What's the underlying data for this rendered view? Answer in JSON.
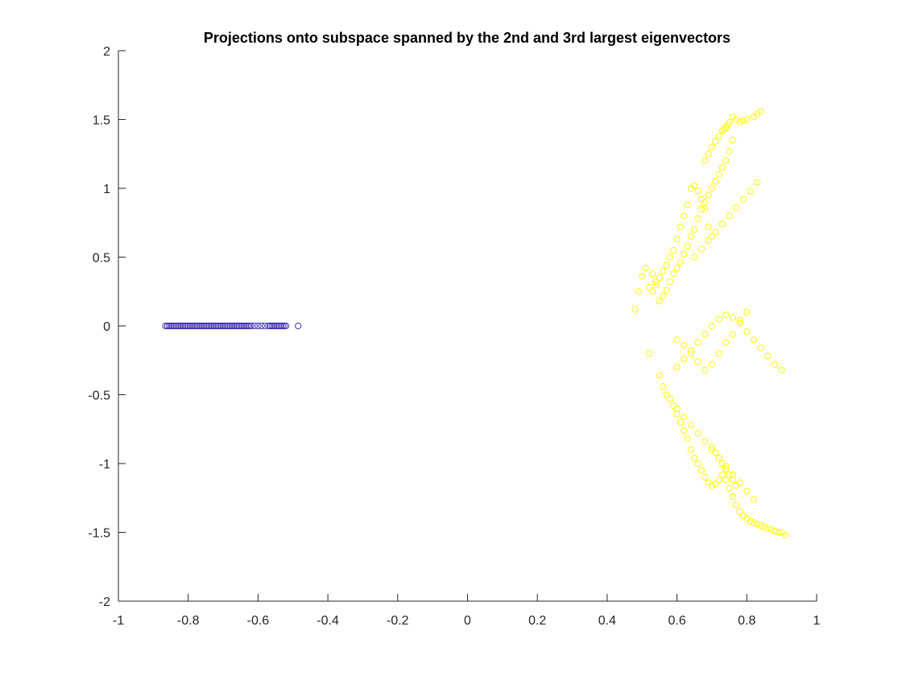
{
  "window": {
    "title": ""
  },
  "chart_data": {
    "type": "scatter",
    "title": "Projections onto subspace spanned by the 2nd and 3rd largest eigenvectors",
    "xlabel": "",
    "ylabel": "",
    "xlim": [
      -1,
      1
    ],
    "ylim": [
      -2,
      2
    ],
    "xticks": [
      -1,
      -0.8,
      -0.6,
      -0.4,
      -0.2,
      0,
      0.2,
      0.4,
      0.6,
      0.8,
      1
    ],
    "yticks": [
      -2,
      -1.5,
      -1,
      -0.5,
      0,
      0.5,
      1,
      1.5,
      2
    ],
    "xtick_labels": [
      "-1",
      "-0.8",
      "-0.6",
      "-0.4",
      "-0.2",
      "0",
      "0.2",
      "0.4",
      "0.6",
      "0.8",
      "1"
    ],
    "ytick_labels": [
      "-2",
      "-1.5",
      "-1",
      "-0.5",
      "0",
      "0.5",
      "1",
      "1.5",
      "2"
    ],
    "grid": false,
    "legend": "none",
    "marker": "circle-open",
    "series": [
      {
        "color": "#3a2eb0",
        "x": [
          -0.865,
          -0.86,
          -0.855,
          -0.85,
          -0.845,
          -0.84,
          -0.835,
          -0.83,
          -0.825,
          -0.82,
          -0.815,
          -0.81,
          -0.805,
          -0.8,
          -0.795,
          -0.79,
          -0.785,
          -0.78,
          -0.775,
          -0.77,
          -0.765,
          -0.76,
          -0.755,
          -0.75,
          -0.745,
          -0.74,
          -0.735,
          -0.73,
          -0.725,
          -0.72,
          -0.715,
          -0.71,
          -0.705,
          -0.7,
          -0.695,
          -0.69,
          -0.685,
          -0.68,
          -0.675,
          -0.67,
          -0.665,
          -0.66,
          -0.655,
          -0.65,
          -0.645,
          -0.64,
          -0.635,
          -0.63,
          -0.625,
          -0.62,
          -0.61,
          -0.6,
          -0.59,
          -0.58,
          -0.57,
          -0.565,
          -0.56,
          -0.555,
          -0.55,
          -0.545,
          -0.54,
          -0.535,
          -0.53,
          -0.525,
          -0.52,
          -0.485
        ],
        "y": [
          0,
          0,
          0,
          0,
          0,
          0,
          0,
          0,
          0,
          0,
          0,
          0,
          0,
          0,
          0,
          0,
          0,
          0,
          0,
          0,
          0,
          0,
          0,
          0,
          0,
          0,
          0,
          0,
          0,
          0,
          0,
          0,
          0,
          0,
          0,
          0,
          0,
          0,
          0,
          0,
          0,
          0,
          0,
          0,
          0,
          0,
          0,
          0,
          0,
          0,
          0,
          0,
          0,
          0,
          0,
          0,
          0,
          0,
          0,
          0,
          0,
          0,
          0,
          0,
          0,
          0
        ]
      },
      {
        "color": "#ffff00",
        "x": [
          0.84,
          0.83,
          0.82,
          0.8,
          0.79,
          0.78,
          0.77,
          0.76,
          0.75,
          0.745,
          0.74,
          0.735,
          0.73,
          0.72,
          0.71,
          0.7,
          0.69,
          0.68,
          0.76,
          0.75,
          0.74,
          0.73,
          0.72,
          0.71,
          0.7,
          0.69,
          0.68,
          0.67,
          0.66,
          0.65,
          0.64,
          0.63,
          0.62,
          0.61,
          0.6,
          0.59,
          0.58,
          0.57,
          0.56,
          0.55,
          0.54,
          0.53,
          0.52,
          0.51,
          0.5,
          0.49,
          0.48,
          0.7,
          0.69,
          0.68,
          0.67,
          0.66,
          0.65,
          0.64,
          0.63,
          0.62,
          0.61,
          0.6,
          0.59,
          0.58,
          0.57,
          0.56,
          0.55,
          0.54,
          0.53,
          0.52,
          0.55,
          0.56,
          0.57,
          0.58,
          0.59,
          0.6,
          0.61,
          0.62,
          0.63,
          0.64,
          0.65,
          0.66,
          0.67,
          0.68,
          0.69,
          0.7,
          0.71,
          0.72,
          0.73,
          0.74,
          0.75,
          0.76,
          0.77,
          0.78,
          0.79,
          0.8,
          0.81,
          0.82,
          0.83,
          0.84,
          0.85,
          0.86,
          0.87,
          0.88,
          0.89,
          0.9,
          0.91,
          0.6,
          0.62,
          0.64,
          0.66,
          0.68,
          0.7,
          0.72,
          0.74,
          0.76,
          0.78,
          0.8,
          0.82,
          0.84,
          0.86,
          0.88,
          0.9,
          0.6,
          0.62,
          0.64,
          0.66,
          0.68,
          0.7,
          0.72,
          0.74,
          0.76,
          0.78,
          0.8,
          0.7,
          0.71,
          0.72,
          0.73,
          0.74,
          0.75,
          0.76,
          0.77,
          0.6,
          0.62,
          0.64,
          0.66,
          0.68,
          0.7,
          0.72,
          0.74,
          0.76,
          0.78,
          0.8,
          0.82,
          0.65,
          0.67,
          0.69,
          0.71,
          0.73,
          0.75,
          0.77,
          0.79,
          0.81,
          0.83
        ],
        "y": [
          1.56,
          1.54,
          1.52,
          1.5,
          1.49,
          1.48,
          1.5,
          1.52,
          1.48,
          1.46,
          1.44,
          1.43,
          1.42,
          1.38,
          1.34,
          1.3,
          1.25,
          1.2,
          1.35,
          1.27,
          1.2,
          1.15,
          1.1,
          1.05,
          1.0,
          0.95,
          0.9,
          0.85,
          0.78,
          0.7,
          0.65,
          0.58,
          0.52,
          0.46,
          0.42,
          0.38,
          0.32,
          0.26,
          0.22,
          0.18,
          0.32,
          0.38,
          0.28,
          0.42,
          0.36,
          0.25,
          0.12,
          0.65,
          0.72,
          0.85,
          0.92,
          0.98,
          1.02,
          1.0,
          0.88,
          0.8,
          0.72,
          0.63,
          0.55,
          0.5,
          0.44,
          0.4,
          0.35,
          0.3,
          0.25,
          -0.2,
          -0.36,
          -0.44,
          -0.5,
          -0.53,
          -0.58,
          -0.64,
          -0.7,
          -0.76,
          -0.82,
          -0.9,
          -0.96,
          -1.0,
          -1.05,
          -1.1,
          -1.14,
          -1.16,
          -1.15,
          -1.12,
          -1.08,
          -1.12,
          -1.18,
          -1.24,
          -1.3,
          -1.35,
          -1.38,
          -1.4,
          -1.42,
          -1.43,
          -1.44,
          -1.45,
          -1.46,
          -1.47,
          -1.48,
          -1.49,
          -1.5,
          -1.5,
          -1.52,
          -0.3,
          -0.24,
          -0.18,
          -0.12,
          -0.06,
          0.0,
          0.05,
          0.08,
          0.06,
          0.02,
          -0.04,
          -0.1,
          -0.16,
          -0.22,
          -0.28,
          -0.32,
          -0.1,
          -0.14,
          -0.2,
          -0.26,
          -0.32,
          -0.28,
          -0.2,
          -0.12,
          -0.06,
          0.04,
          0.1,
          -0.88,
          -0.92,
          -0.96,
          -1.0,
          -1.04,
          -1.08,
          -1.12,
          -1.16,
          -0.6,
          -0.66,
          -0.72,
          -0.78,
          -0.84,
          -0.9,
          -0.96,
          -1.02,
          -1.08,
          -1.14,
          -1.2,
          -1.26,
          0.5,
          0.56,
          0.62,
          0.68,
          0.74,
          0.8,
          0.86,
          0.92,
          0.98,
          1.04
        ]
      }
    ]
  }
}
